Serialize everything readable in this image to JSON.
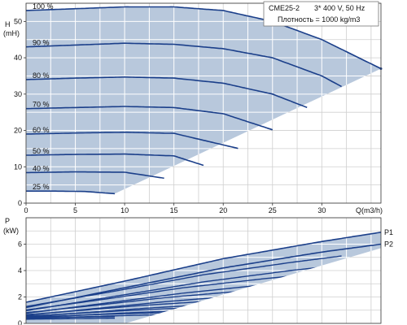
{
  "chart_data": [
    {
      "type": "line",
      "title": "",
      "xlabel": "Q(m3/h)",
      "ylabel": "H",
      "ylabel_unit": "(mH)",
      "xlim": [
        0,
        36
      ],
      "ylim": [
        0,
        55
      ],
      "xticks": [
        0,
        5,
        10,
        15,
        20,
        25,
        30
      ],
      "yticks": [
        0,
        10,
        20,
        30,
        40,
        50
      ],
      "grid": true,
      "fill_color": "#b8c8dc",
      "line_color": "#1b3f8a",
      "info": {
        "model": "CME25-2",
        "supply": "3* 400 V, 50 Hz",
        "density": "Плотность = 1000 kg/m3"
      },
      "series": [
        {
          "name": "100 %",
          "x": [
            0,
            5,
            10,
            15,
            20,
            25,
            30,
            36
          ],
          "y": [
            53,
            53.5,
            54,
            54,
            53,
            50,
            45,
            37
          ]
        },
        {
          "name": "90 %",
          "x": [
            0,
            5,
            10,
            15,
            20,
            25,
            30,
            32.4
          ],
          "y": [
            43,
            43.5,
            44,
            43.7,
            42.5,
            40,
            35,
            31.5
          ]
        },
        {
          "name": "80 %",
          "x": [
            0,
            5,
            10,
            15,
            20,
            25,
            28.8
          ],
          "y": [
            34,
            34.4,
            34.7,
            34.4,
            33,
            30,
            26
          ]
        },
        {
          "name": "70 %",
          "x": [
            0,
            5,
            10,
            15,
            20,
            25.2
          ],
          "y": [
            26,
            26.3,
            26.6,
            26.3,
            24.6,
            20
          ]
        },
        {
          "name": "60 %",
          "x": [
            0,
            5,
            10,
            15,
            21.6
          ],
          "y": [
            19,
            19.3,
            19.5,
            19.2,
            15
          ]
        },
        {
          "name": "50 %",
          "x": [
            0,
            5,
            10,
            15,
            18
          ],
          "y": [
            13.2,
            13.4,
            13.5,
            13,
            10.4
          ]
        },
        {
          "name": "40 %",
          "x": [
            0,
            5,
            10,
            14.4
          ],
          "y": [
            8.4,
            8.6,
            8.5,
            6.7
          ]
        },
        {
          "name": "25 %",
          "x": [
            0,
            3,
            6,
            9
          ],
          "y": [
            3.3,
            3.3,
            3.2,
            2.6
          ]
        }
      ]
    },
    {
      "type": "line",
      "title": "",
      "xlabel": "",
      "ylabel": "P",
      "ylabel_unit": "(kW)",
      "xlim": [
        0,
        36
      ],
      "ylim": [
        0,
        8
      ],
      "yticks": [
        0,
        2,
        4,
        6
      ],
      "grid": true,
      "fill_color": "#b8c8dc",
      "line_color": "#1b3f8a",
      "series": [
        {
          "name": "P1",
          "x": [
            0,
            10,
            20,
            30,
            36
          ],
          "y": [
            1.6,
            3.2,
            4.9,
            6.2,
            6.9
          ]
        },
        {
          "name": "P2",
          "x": [
            0,
            10,
            20,
            30,
            36
          ],
          "y": [
            1.2,
            2.7,
            4.2,
            5.4,
            6.0
          ]
        }
      ]
    }
  ]
}
